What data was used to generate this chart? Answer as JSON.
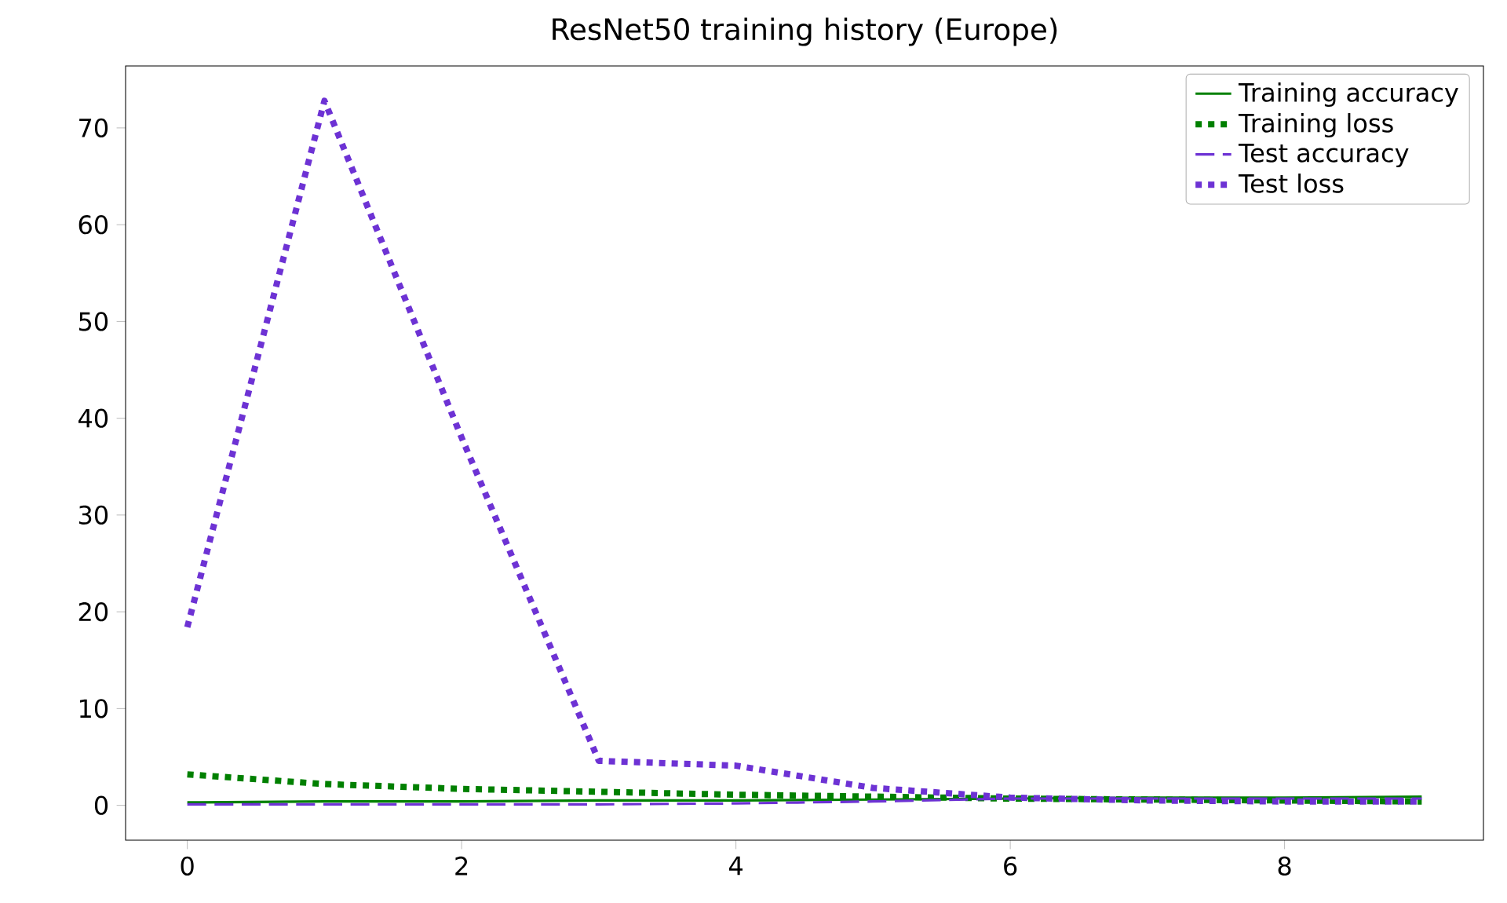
{
  "chart_data": {
    "type": "line",
    "title": "ResNet50 training history (Europe)",
    "x": [
      0,
      1,
      2,
      3,
      4,
      5,
      6,
      7,
      8,
      9
    ],
    "series": [
      {
        "name": "Training accuracy",
        "color": "#008000",
        "line_style": "solid",
        "values": [
          0.3,
          0.4,
          0.4,
          0.5,
          0.5,
          0.6,
          0.7,
          0.8,
          0.8,
          0.9
        ]
      },
      {
        "name": "Training loss",
        "color": "#008000",
        "line_style": "dotted",
        "values": [
          3.2,
          2.2,
          1.7,
          1.4,
          1.1,
          0.9,
          0.7,
          0.6,
          0.5,
          0.4
        ]
      },
      {
        "name": "Test accuracy",
        "color": "#6d32d4",
        "line_style": "dashed",
        "values": [
          0.1,
          0.1,
          0.1,
          0.1,
          0.2,
          0.4,
          0.7,
          0.7,
          0.7,
          0.7
        ]
      },
      {
        "name": "Test loss",
        "color": "#6d32d4",
        "line_style": "dotted",
        "values": [
          18.4,
          72.8,
          38,
          4.6,
          4.1,
          1.8,
          0.8,
          0.5,
          0.4,
          0.4
        ]
      }
    ],
    "xlim": [
      -0.45,
      9.45
    ],
    "ylim": [
      -3.6,
      76.4
    ],
    "xticks": [
      0,
      2,
      4,
      6,
      8
    ],
    "yticks": [
      0,
      10,
      20,
      30,
      40,
      50,
      60,
      70
    ],
    "legend": "top right",
    "grid": false,
    "marker": "none"
  }
}
